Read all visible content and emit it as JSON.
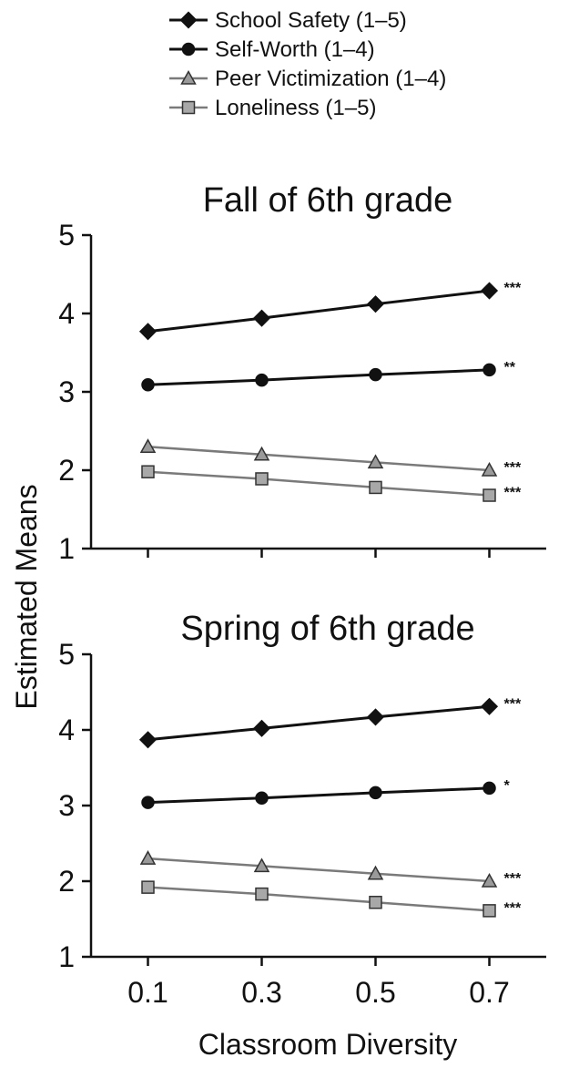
{
  "chart_data": {
    "type": "line",
    "x": [
      0.1,
      0.3,
      0.5,
      0.7
    ],
    "x_tick_labels": [
      "0.1",
      "0.3",
      "0.5",
      "0.7"
    ],
    "xlabel": "Classroom Diversity",
    "ylabel": "Estimated Means",
    "ylim": [
      1,
      5
    ],
    "y_ticks": [
      1,
      2,
      3,
      4,
      5
    ],
    "grid": false,
    "legend_position": "top",
    "legend": [
      {
        "key": "school_safety",
        "label": "School Safety (1–5)",
        "marker": "diamond",
        "color": "#111111",
        "marker_fill": "#111111"
      },
      {
        "key": "self_worth",
        "label": "Self-Worth (1–4)",
        "marker": "circle",
        "color": "#111111",
        "marker_fill": "#111111"
      },
      {
        "key": "peer_victimization",
        "label": "Peer Victimization (1–4)",
        "marker": "triangle",
        "color": "#7a7a7a",
        "marker_fill": "#9a9a9a"
      },
      {
        "key": "loneliness",
        "label": "Loneliness (1–5)",
        "marker": "square",
        "color": "#7a7a7a",
        "marker_fill": "#a8a8a8"
      }
    ],
    "panels": [
      {
        "title": "Fall of 6th grade",
        "series": [
          {
            "key": "school_safety",
            "values": [
              3.77,
              3.94,
              4.12,
              4.29
            ],
            "significance": "***"
          },
          {
            "key": "self_worth",
            "values": [
              3.09,
              3.15,
              3.22,
              3.28
            ],
            "significance": "**"
          },
          {
            "key": "peer_victimization",
            "values": [
              2.3,
              2.2,
              2.1,
              2.0
            ],
            "significance": "***"
          },
          {
            "key": "loneliness",
            "values": [
              1.98,
              1.89,
              1.78,
              1.68
            ],
            "significance": "***"
          }
        ]
      },
      {
        "title": "Spring of 6th grade",
        "series": [
          {
            "key": "school_safety",
            "values": [
              3.87,
              4.02,
              4.17,
              4.31
            ],
            "significance": "***"
          },
          {
            "key": "self_worth",
            "values": [
              3.04,
              3.1,
              3.17,
              3.23
            ],
            "significance": "*"
          },
          {
            "key": "peer_victimization",
            "values": [
              2.3,
              2.2,
              2.1,
              2.0
            ],
            "significance": "***"
          },
          {
            "key": "loneliness",
            "values": [
              1.92,
              1.83,
              1.72,
              1.61
            ],
            "significance": "***"
          }
        ]
      }
    ]
  }
}
